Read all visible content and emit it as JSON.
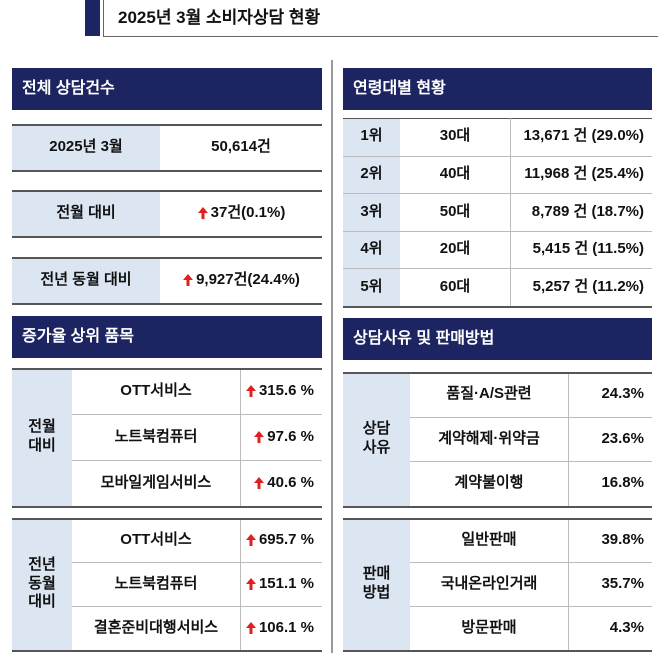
{
  "header": {
    "title": "2025년 3월 소비자상담 현황"
  },
  "total": {
    "title": "전체 상담건수",
    "rows": [
      [
        "2025년 3월",
        "50,614건"
      ],
      [
        "전월 대비",
        "37건(0.1%)"
      ],
      [
        "전년 동월 대비",
        "9,927건(24.4%)"
      ]
    ]
  },
  "growth": {
    "title": "증가율 상위 품목",
    "groups": [
      {
        "label": "전월\n대비",
        "items": [
          [
            "OTT서비스",
            "315.6 %"
          ],
          [
            "노트북컴퓨터",
            "97.6 %"
          ],
          [
            "모바일게임서비스",
            "40.6 %"
          ]
        ]
      },
      {
        "label": "전년\n동월\n대비",
        "items": [
          [
            "OTT서비스",
            "695.7 %"
          ],
          [
            "노트북컴퓨터",
            "151.1 %"
          ],
          [
            "결혼준비대행서비스",
            "106.1 %"
          ]
        ]
      }
    ]
  },
  "age": {
    "title": "연령대별 현황",
    "rows": [
      [
        "1위",
        "30대",
        "13,671 건 (29.0%)"
      ],
      [
        "2위",
        "40대",
        "11,968 건 (25.4%)"
      ],
      [
        "3위",
        "50대",
        "8,789 건 (18.7%)"
      ],
      [
        "4위",
        "20대",
        "5,415 건 (11.5%)"
      ],
      [
        "5위",
        "60대",
        "5,257 건 (11.2%)"
      ]
    ]
  },
  "reasons": {
    "title": "상담사유 및 판매방법",
    "groups": [
      {
        "label": "상담\n사유",
        "items": [
          [
            "품질·A/S관련",
            "24.3%"
          ],
          [
            "계약해제·위약금",
            "23.6%"
          ],
          [
            "계약불이행",
            "16.8%"
          ]
        ]
      },
      {
        "label": "판매\n방법",
        "items": [
          [
            "일반판매",
            "39.8%"
          ],
          [
            "국내온라인거래",
            "35.7%"
          ],
          [
            "방문판매",
            "4.3%"
          ]
        ]
      }
    ]
  }
}
